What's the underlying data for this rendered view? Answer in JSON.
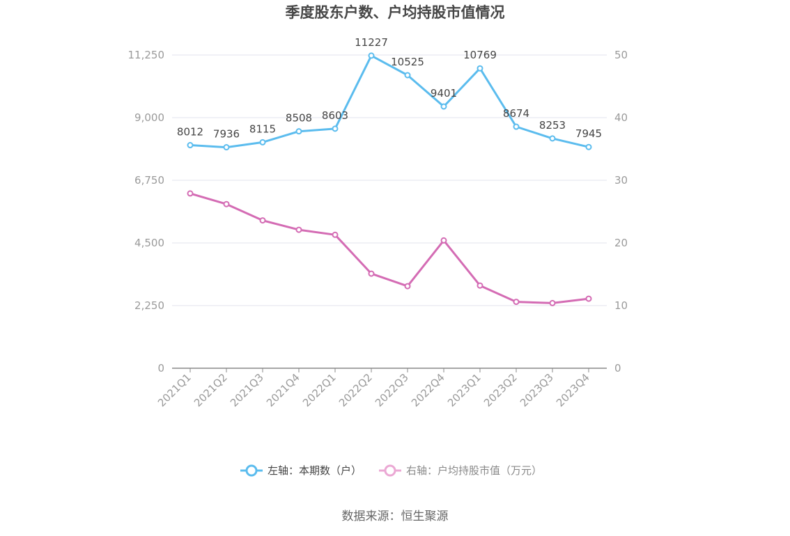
{
  "title": "季度股东户数、户均持股市值情况",
  "source": "数据来源：恒生聚源",
  "chart_data": {
    "type": "line",
    "categories": [
      "2021Q1",
      "2021Q2",
      "2021Q3",
      "2021Q4",
      "2022Q1",
      "2022Q2",
      "2022Q3",
      "2022Q4",
      "2023Q1",
      "2023Q2",
      "2023Q3",
      "2023Q4"
    ],
    "left_axis": {
      "ylim": [
        0,
        11250
      ],
      "ticks": [
        "0",
        "2,250",
        "4,500",
        "6,750",
        "9,000",
        "11,250"
      ]
    },
    "right_axis": {
      "ylim": [
        0,
        50
      ],
      "ticks": [
        "0",
        "10",
        "20",
        "30",
        "40",
        "50"
      ]
    },
    "series": [
      {
        "name": "左轴：本期数（户）",
        "axis": "left",
        "color": "#5bbcee",
        "values": [
          8012,
          7936,
          8115,
          8508,
          8603,
          11227,
          10525,
          9401,
          10769,
          8674,
          8253,
          7945
        ],
        "data_labels": [
          "8012",
          "7936",
          "8115",
          "8508",
          "8603",
          "11227",
          "10525",
          "9401",
          "10769",
          "8674",
          "8253",
          "7945"
        ]
      },
      {
        "name": "右轴：户均持股市值（万元）",
        "axis": "right",
        "color": "#d46cb4",
        "values": [
          27.9,
          26.2,
          23.6,
          22.1,
          21.3,
          15.1,
          13.1,
          20.4,
          13.2,
          10.6,
          10.4,
          11.1
        ]
      }
    ],
    "grid": true,
    "legend_position": "bottom"
  }
}
